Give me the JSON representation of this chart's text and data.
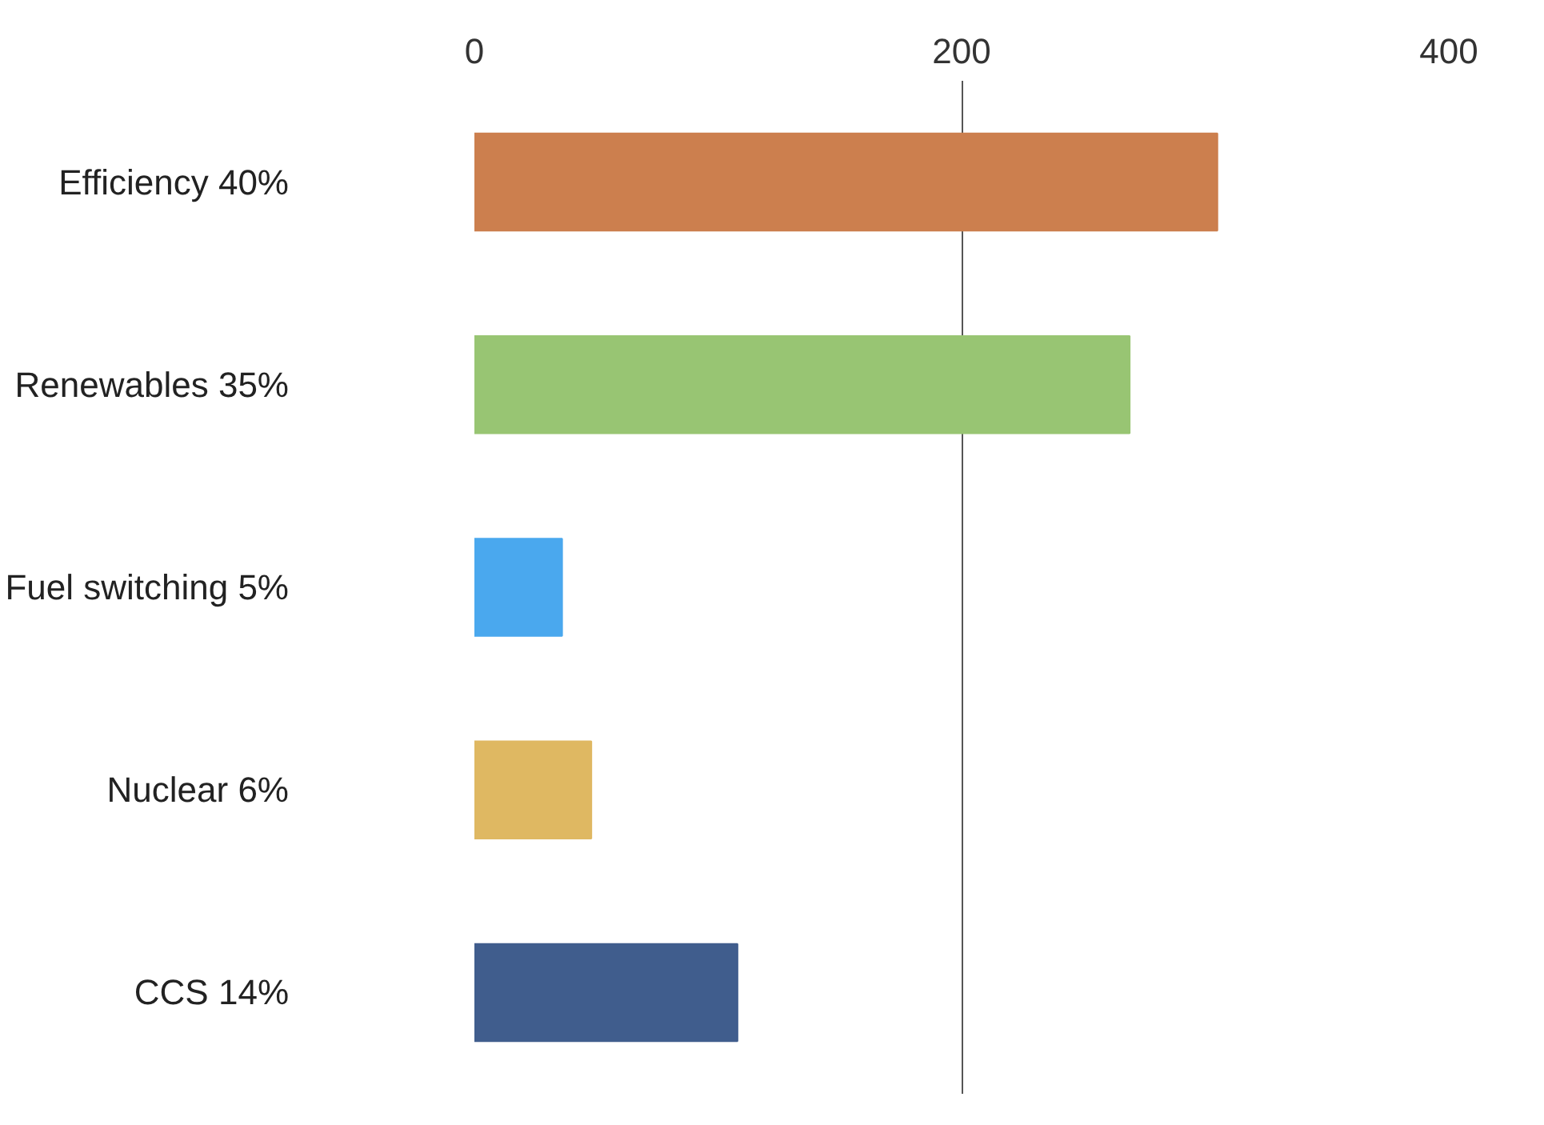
{
  "chart_data": {
    "type": "bar",
    "orientation": "horizontal",
    "categories": [
      "Efficiency 40%",
      "Renewables 35%",
      "Fuel switching 5%",
      "Nuclear 6%",
      "CCS 14%"
    ],
    "values": [
      305,
      269,
      36,
      48,
      108
    ],
    "colors": [
      "#cc7f4e",
      "#98c573",
      "#4aa8ee",
      "#dfb862",
      "#405d8d"
    ],
    "xlim": [
      0,
      400
    ],
    "xticks": [
      0,
      200,
      400
    ],
    "grid": "x"
  }
}
